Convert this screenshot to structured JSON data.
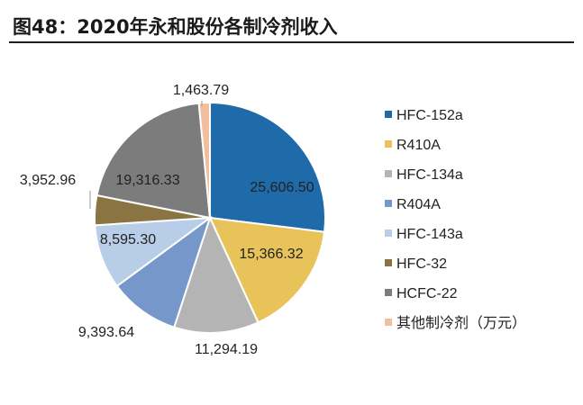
{
  "header": {
    "title": "图48：2020年永和股份各制冷剂收入"
  },
  "chart_data": {
    "type": "pie",
    "title": "图48：2020年永和股份各制冷剂收入",
    "slices": [
      {
        "name": "HFC-152a",
        "value": 25606.5,
        "label": "25,606.50",
        "color": "#1f6aa8"
      },
      {
        "name": "R410A",
        "value": 15366.32,
        "label": "15,366.32",
        "color": "#e8c35a"
      },
      {
        "name": "HFC-134a",
        "value": 11294.19,
        "label": "11,294.19",
        "color": "#b4b4b4"
      },
      {
        "name": "R404A",
        "value": 9393.64,
        "label": "9,393.64",
        "color": "#7697c9"
      },
      {
        "name": "HFC-143a",
        "value": 8595.3,
        "label": "8,595.30",
        "color": "#b7cde8"
      },
      {
        "name": "HFC-32",
        "value": 3952.96,
        "label": "3,952.96",
        "color": "#8a7442"
      },
      {
        "name": "HCFC-22",
        "value": 19316.33,
        "label": "19,316.33",
        "color": "#7c7c7c"
      },
      {
        "name": "其他制冷剂（万元）",
        "value": 1463.79,
        "label": "1,463.79",
        "color": "#f2bf9e"
      }
    ],
    "legend_position": "right",
    "start_angle_deg": 0,
    "direction": "clockwise"
  }
}
